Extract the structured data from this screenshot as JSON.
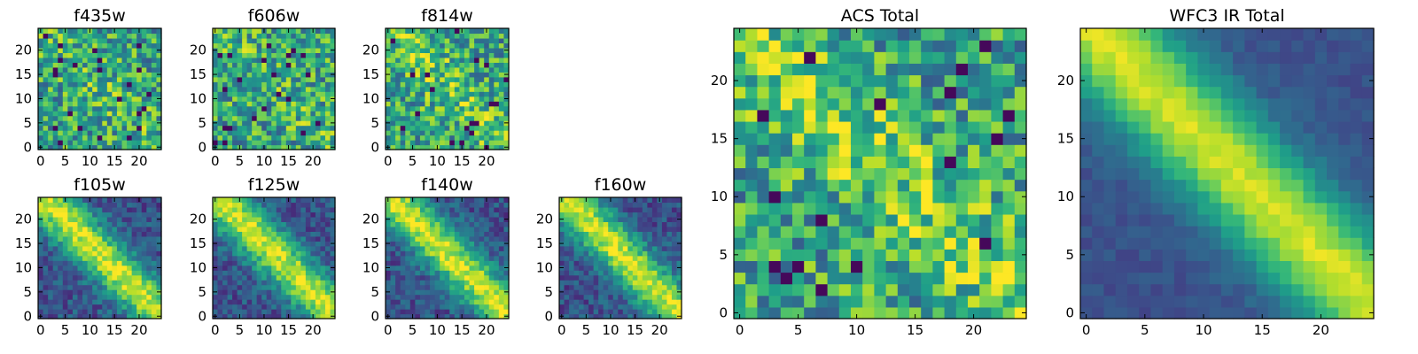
{
  "chart_data": [
    {
      "type": "heatmap",
      "title": "f435w",
      "grid": false,
      "xlim": [
        -0.5,
        24.5
      ],
      "ylim": [
        -0.5,
        24.5
      ],
      "xticks": [
        "0",
        "5",
        "10",
        "15",
        "20"
      ],
      "yticks": [
        "0",
        "5",
        "10",
        "15",
        "20"
      ],
      "colormap": "viridis"
    },
    {
      "type": "heatmap",
      "title": "f606w",
      "grid": false,
      "xlim": [
        -0.5,
        24.5
      ],
      "ylim": [
        -0.5,
        24.5
      ],
      "xticks": [
        "0",
        "5",
        "10",
        "15",
        "20"
      ],
      "yticks": [
        "0",
        "5",
        "10",
        "15",
        "20"
      ],
      "colormap": "viridis"
    },
    {
      "type": "heatmap",
      "title": "f814w",
      "grid": false,
      "xlim": [
        -0.5,
        24.5
      ],
      "ylim": [
        -0.5,
        24.5
      ],
      "xticks": [
        "0",
        "5",
        "10",
        "15",
        "20"
      ],
      "yticks": [
        "0",
        "5",
        "10",
        "15",
        "20"
      ],
      "colormap": "viridis"
    },
    {
      "type": "heatmap",
      "title": "f105w",
      "grid": false,
      "xlim": [
        -0.5,
        24.5
      ],
      "ylim": [
        -0.5,
        24.5
      ],
      "xticks": [
        "0",
        "5",
        "10",
        "15",
        "20"
      ],
      "yticks": [
        "0",
        "5",
        "10",
        "15",
        "20"
      ],
      "colormap": "viridis"
    },
    {
      "type": "heatmap",
      "title": "f125w",
      "grid": false,
      "xlim": [
        -0.5,
        24.5
      ],
      "ylim": [
        -0.5,
        24.5
      ],
      "xticks": [
        "0",
        "5",
        "10",
        "15",
        "20"
      ],
      "yticks": [
        "0",
        "5",
        "10",
        "15",
        "20"
      ],
      "colormap": "viridis"
    },
    {
      "type": "heatmap",
      "title": "f140w",
      "grid": false,
      "xlim": [
        -0.5,
        24.5
      ],
      "ylim": [
        -0.5,
        24.5
      ],
      "xticks": [
        "0",
        "5",
        "10",
        "15",
        "20"
      ],
      "yticks": [
        "0",
        "5",
        "10",
        "15",
        "20"
      ],
      "colormap": "viridis"
    },
    {
      "type": "heatmap",
      "title": "f160w",
      "grid": false,
      "xlim": [
        -0.5,
        24.5
      ],
      "ylim": [
        -0.5,
        24.5
      ],
      "xticks": [
        "0",
        "5",
        "10",
        "15",
        "20"
      ],
      "yticks": [
        "0",
        "5",
        "10",
        "15",
        "20"
      ],
      "colormap": "viridis"
    },
    {
      "type": "heatmap",
      "title": "ACS Total",
      "grid": false,
      "xlim": [
        -0.5,
        24.5
      ],
      "ylim": [
        -0.5,
        24.5
      ],
      "xticks": [
        "0",
        "5",
        "10",
        "15",
        "20"
      ],
      "yticks": [
        "0",
        "5",
        "10",
        "15",
        "20"
      ],
      "colormap": "viridis"
    },
    {
      "type": "heatmap",
      "title": "WFC3 IR Total",
      "grid": false,
      "xlim": [
        -0.5,
        24.5
      ],
      "ylim": [
        -0.5,
        24.5
      ],
      "xticks": [
        "0",
        "5",
        "10",
        "15",
        "20"
      ],
      "yticks": [
        "0",
        "5",
        "10",
        "15",
        "20"
      ],
      "colormap": "viridis"
    }
  ],
  "colors": {
    "viridis_low": "#440154",
    "viridis_mid": "#21918c",
    "viridis_high": "#fde725"
  }
}
